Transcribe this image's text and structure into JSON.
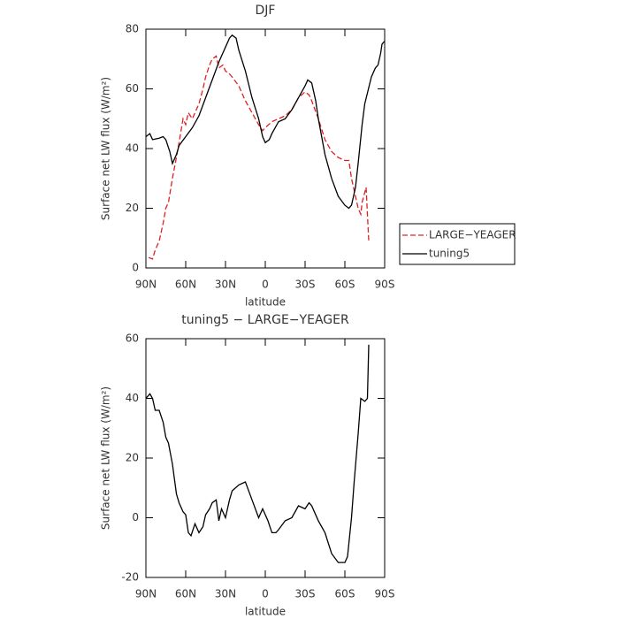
{
  "chart_data": [
    {
      "type": "line",
      "title": "DJF",
      "xlabel": "latitude",
      "ylabel": "Surface net LW flux (W/m²)",
      "xlim": [
        90,
        -90
      ],
      "xticks": [
        {
          "value": 90,
          "label": "90N"
        },
        {
          "value": 60,
          "label": "60N"
        },
        {
          "value": 30,
          "label": "30N"
        },
        {
          "value": 0,
          "label": "0"
        },
        {
          "value": -30,
          "label": "30S"
        },
        {
          "value": -60,
          "label": "60S"
        },
        {
          "value": -90,
          "label": "90S"
        }
      ],
      "ylim": [
        0,
        80
      ],
      "yticks": [
        0,
        20,
        40,
        60,
        80
      ],
      "legend": "right",
      "series": [
        {
          "name": "LARGE−YEAGER",
          "color": "#e02020",
          "dashed": true,
          "x": [
            88,
            85,
            83,
            80,
            77,
            75,
            73,
            70,
            67,
            65,
            62,
            60,
            58,
            55,
            52,
            50,
            47,
            45,
            42,
            40,
            37,
            35,
            32,
            30,
            27,
            25,
            20,
            15,
            10,
            5,
            2,
            0,
            -5,
            -10,
            -15,
            -20,
            -25,
            -30,
            -33,
            -35,
            -40,
            -45,
            -50,
            -55,
            -60,
            -63,
            -65,
            -70,
            -72,
            -73,
            -76,
            -78
          ],
          "values": [
            3.5,
            3,
            6,
            9,
            15,
            20,
            22,
            30,
            37,
            42,
            50,
            48,
            52,
            50,
            53,
            55,
            60,
            64,
            68,
            70,
            71,
            67,
            68,
            66,
            65,
            64,
            61,
            56,
            52,
            48,
            46,
            47,
            49,
            50,
            51,
            53,
            57,
            59,
            58,
            56,
            50,
            43,
            39,
            37,
            36,
            36,
            30,
            20,
            18,
            22,
            27,
            9
          ]
        },
        {
          "name": "tuning5",
          "color": "#000000",
          "dashed": false,
          "x": [
            90,
            87,
            85,
            80,
            77,
            75,
            72,
            70,
            67,
            65,
            60,
            55,
            50,
            45,
            40,
            35,
            30,
            27,
            25,
            22,
            20,
            15,
            10,
            5,
            2,
            0,
            -3,
            -5,
            -10,
            -15,
            -20,
            -25,
            -30,
            -32,
            -35,
            -38,
            -40,
            -45,
            -50,
            -55,
            -60,
            -63,
            -65,
            -68,
            -70,
            -73,
            -75,
            -80,
            -83,
            -85,
            -87,
            -88,
            -90
          ],
          "values": [
            44,
            45,
            43,
            43.5,
            44,
            43,
            39,
            35,
            38,
            41,
            44,
            47,
            51,
            57,
            63,
            69,
            74,
            77,
            78,
            77,
            73,
            66,
            57,
            50,
            44,
            42,
            43,
            45,
            49,
            50,
            53,
            57,
            61,
            63,
            62,
            56,
            50,
            38,
            30,
            24,
            21,
            20,
            21,
            27,
            35,
            48,
            55,
            64,
            67,
            68,
            72,
            75,
            76
          ]
        }
      ]
    },
    {
      "type": "line",
      "title": "tuning5 − LARGE−YEAGER",
      "xlabel": "latitude",
      "ylabel": "Surface net LW flux (W/m²)",
      "xlim": [
        90,
        -90
      ],
      "xticks": [
        {
          "value": 90,
          "label": "90N"
        },
        {
          "value": 60,
          "label": "60N"
        },
        {
          "value": 30,
          "label": "30N"
        },
        {
          "value": 0,
          "label": "0"
        },
        {
          "value": -30,
          "label": "30S"
        },
        {
          "value": -60,
          "label": "60S"
        },
        {
          "value": -90,
          "label": "90S"
        }
      ],
      "ylim": [
        -20,
        60
      ],
      "yticks": [
        -20,
        0,
        20,
        40,
        60
      ],
      "series": [
        {
          "color": "#000000",
          "dashed": false,
          "x": [
            90,
            87,
            85,
            83,
            80,
            77,
            75,
            73,
            70,
            67,
            65,
            62,
            60,
            58,
            56,
            53,
            50,
            47,
            45,
            42,
            40,
            37,
            35,
            33,
            30,
            27,
            25,
            20,
            15,
            10,
            5,
            2,
            -2,
            -5,
            -8,
            -10,
            -15,
            -20,
            -25,
            -30,
            -33,
            -35,
            -40,
            -45,
            -50,
            -55,
            -60,
            -62,
            -65,
            -67,
            -70,
            -72,
            -75,
            -77,
            -78
          ],
          "values": [
            40,
            41.5,
            40,
            36,
            36,
            32,
            27,
            25,
            18,
            8,
            5,
            2,
            1,
            -5,
            -6,
            -2,
            -5,
            -3,
            1,
            3,
            5,
            6,
            -1,
            3,
            0,
            6,
            9,
            11,
            12,
            6,
            0,
            3,
            -1,
            -5,
            -5,
            -4,
            -1,
            0,
            4,
            3,
            5,
            4,
            -1,
            -5,
            -12,
            -15,
            -15,
            -13,
            0,
            12,
            28,
            40,
            39,
            40,
            58
          ]
        }
      ]
    }
  ]
}
